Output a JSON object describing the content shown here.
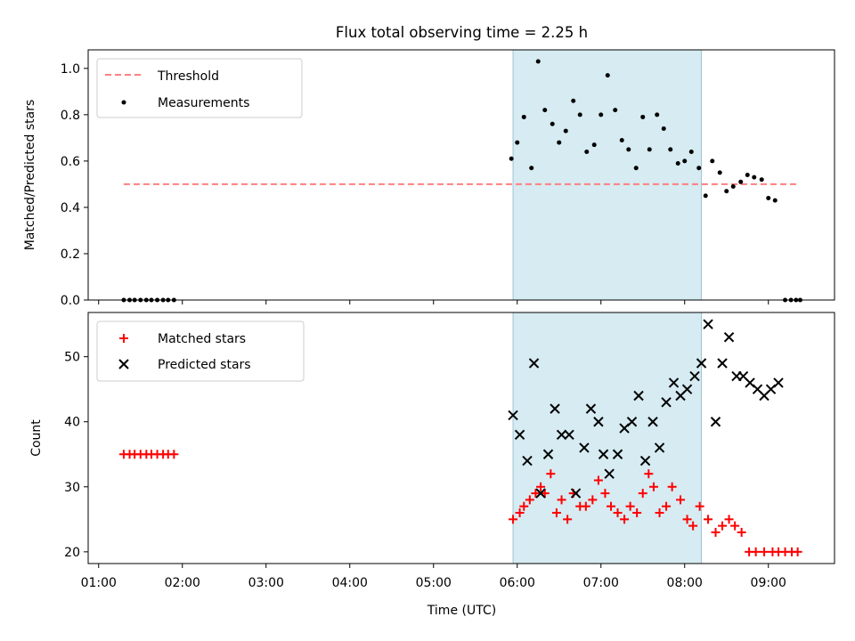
{
  "chart_data": [
    {
      "type": "scatter",
      "title": "Flux total observing time = 2.25 h",
      "xlabel": "",
      "ylabel": "Matched/Predicted stars",
      "xlim": [
        0.875,
        9.79
      ],
      "ylim": [
        0.0,
        1.08
      ],
      "yticks": [
        0.0,
        0.2,
        0.4,
        0.6,
        0.8,
        1.0
      ],
      "ytick_labels": [
        "0.0",
        "0.2",
        "0.4",
        "0.6",
        "0.8",
        "1.0"
      ],
      "highlight_span": [
        5.95,
        8.2
      ],
      "legend": {
        "position": "top-left",
        "entries": [
          "Threshold",
          "Measurements"
        ]
      },
      "threshold": {
        "name": "Threshold",
        "x": [
          1.3,
          9.35
        ],
        "value": 0.5,
        "color": "#ff7f7f"
      },
      "series": [
        {
          "name": "Measurements",
          "color": "#000000",
          "x": [
            1.3,
            1.37,
            1.43,
            1.5,
            1.57,
            1.63,
            1.7,
            1.77,
            1.83,
            1.9,
            5.93,
            6.0,
            6.08,
            6.17,
            6.25,
            6.33,
            6.42,
            6.5,
            6.58,
            6.67,
            6.75,
            6.83,
            6.92,
            7.0,
            7.08,
            7.17,
            7.25,
            7.33,
            7.42,
            7.5,
            7.58,
            7.67,
            7.75,
            7.83,
            7.92,
            8.0,
            8.08,
            8.17,
            8.25,
            8.33,
            8.42,
            8.5,
            8.58,
            8.67,
            8.75,
            8.83,
            8.92,
            9.0,
            9.08,
            9.2,
            9.27,
            9.33,
            9.38
          ],
          "y": [
            0,
            0,
            0,
            0,
            0,
            0,
            0,
            0,
            0,
            0,
            0.61,
            0.68,
            0.79,
            0.57,
            1.03,
            0.82,
            0.76,
            0.68,
            0.73,
            0.86,
            0.8,
            0.64,
            0.67,
            0.8,
            0.97,
            0.82,
            0.69,
            0.65,
            0.57,
            0.79,
            0.65,
            0.8,
            0.74,
            0.65,
            0.59,
            0.6,
            0.64,
            0.57,
            0.45,
            0.6,
            0.55,
            0.47,
            0.49,
            0.51,
            0.54,
            0.53,
            0.52,
            0.44,
            0.43,
            0,
            0,
            0,
            0
          ]
        }
      ]
    },
    {
      "type": "scatter",
      "title": "",
      "xlabel": "Time (UTC)",
      "ylabel": "Count",
      "xlim": [
        0.875,
        9.79
      ],
      "ylim": [
        18.2,
        56.8
      ],
      "xticks": [
        1,
        2,
        3,
        4,
        5,
        6,
        7,
        8,
        9
      ],
      "xtick_labels": [
        "01:00",
        "02:00",
        "03:00",
        "04:00",
        "05:00",
        "06:00",
        "07:00",
        "08:00",
        "09:00"
      ],
      "yticks": [
        20,
        30,
        40,
        50
      ],
      "ytick_labels": [
        "20",
        "30",
        "40",
        "50"
      ],
      "highlight_span": [
        5.95,
        8.2
      ],
      "legend": {
        "position": "top-left",
        "entries": [
          "Matched stars",
          "Predicted stars"
        ]
      },
      "series": [
        {
          "name": "Matched stars",
          "color": "#ff0000",
          "marker": "plus",
          "x": [
            1.3,
            1.37,
            1.43,
            1.5,
            1.57,
            1.63,
            1.7,
            1.77,
            1.83,
            1.9,
            5.95,
            6.03,
            6.08,
            6.15,
            6.22,
            6.28,
            6.33,
            6.4,
            6.47,
            6.53,
            6.6,
            6.67,
            6.75,
            6.82,
            6.9,
            6.97,
            7.05,
            7.12,
            7.2,
            7.28,
            7.35,
            7.43,
            7.5,
            7.57,
            7.63,
            7.7,
            7.78,
            7.85,
            7.95,
            8.03,
            8.1,
            8.18,
            8.28,
            8.37,
            8.45,
            8.53,
            8.6,
            8.68,
            8.77,
            8.85,
            8.95,
            9.05,
            9.12,
            9.2,
            9.28,
            9.35
          ],
          "y": [
            35,
            35,
            35,
            35,
            35,
            35,
            35,
            35,
            35,
            35,
            25,
            26,
            27,
            28,
            29,
            30,
            29,
            32,
            26,
            28,
            25,
            29,
            27,
            27,
            28,
            31,
            29,
            27,
            26,
            25,
            27,
            26,
            29,
            32,
            30,
            26,
            27,
            30,
            28,
            25,
            24,
            27,
            25,
            23,
            24,
            25,
            24,
            23,
            20,
            20,
            20,
            20,
            20,
            20,
            20,
            20
          ]
        },
        {
          "name": "Predicted stars",
          "color": "#000000",
          "marker": "x",
          "x": [
            5.95,
            6.03,
            6.12,
            6.2,
            6.28,
            6.37,
            6.45,
            6.53,
            6.62,
            6.7,
            6.8,
            6.88,
            6.97,
            7.03,
            7.1,
            7.2,
            7.28,
            7.37,
            7.45,
            7.53,
            7.62,
            7.7,
            7.78,
            7.87,
            7.95,
            8.03,
            8.12,
            8.2,
            8.28,
            8.37,
            8.45,
            8.53,
            8.62,
            8.7,
            8.78,
            8.87,
            8.95,
            9.03,
            9.12
          ],
          "y": [
            41,
            38,
            34,
            49,
            29,
            35,
            42,
            38,
            38,
            29,
            36,
            42,
            40,
            35,
            32,
            35,
            39,
            40,
            44,
            34,
            40,
            36,
            43,
            46,
            44,
            45,
            47,
            49,
            55,
            40,
            49,
            53,
            47,
            47,
            46,
            45,
            44,
            45,
            46
          ]
        }
      ]
    }
  ]
}
